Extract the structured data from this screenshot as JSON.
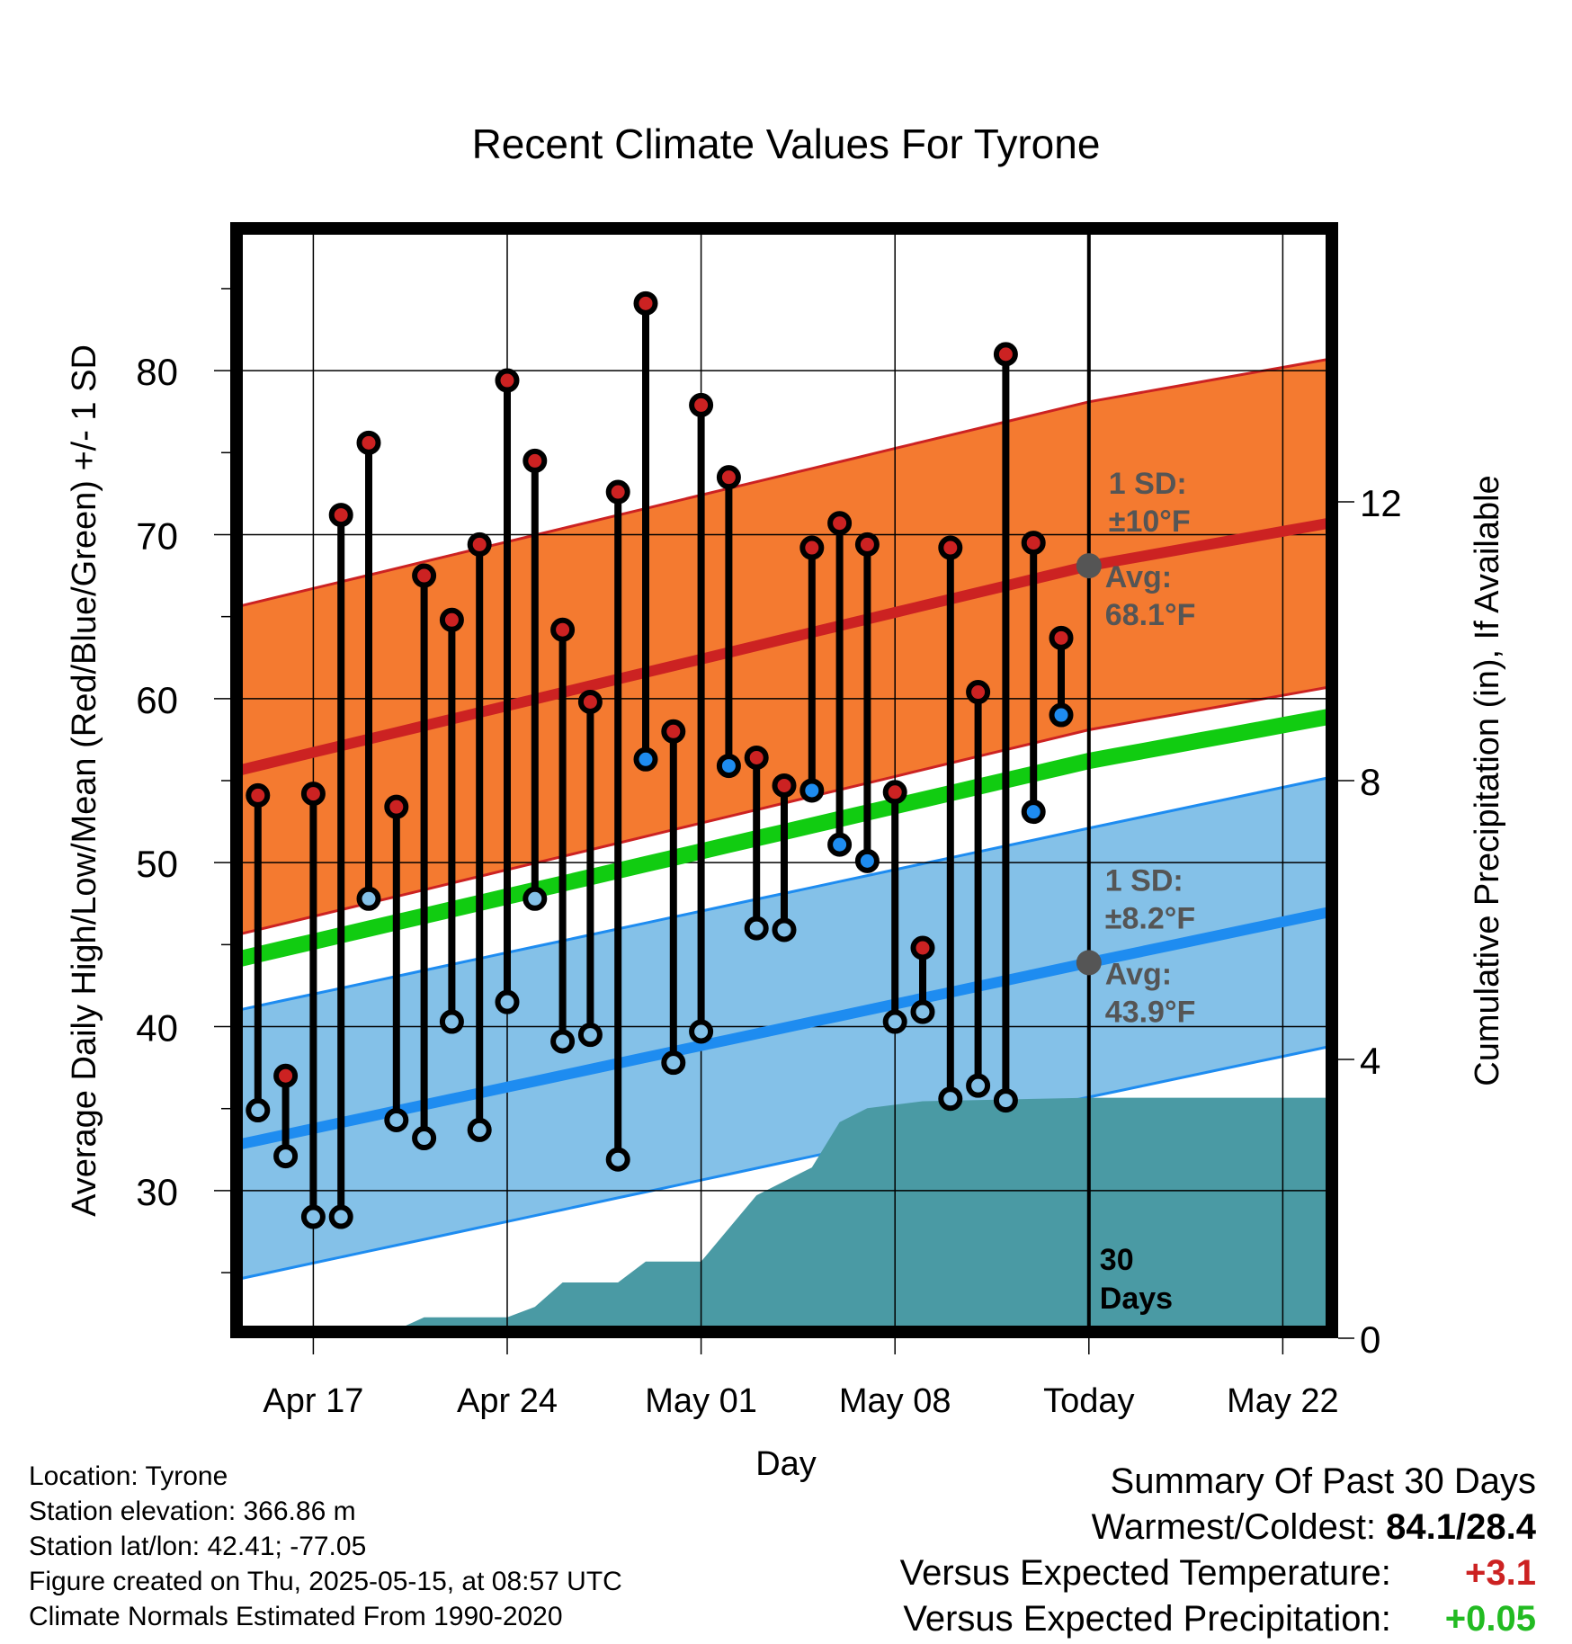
{
  "chart_data": {
    "type": "line",
    "title": "Recent Climate Values For Tyrone",
    "xlabel": "Day",
    "ylabel_left": "Average Daily High/Low/Mean (Red/Blue/Green) +/- 1 SD",
    "ylabel_right": "Cumulative Precipitation (in), If Available",
    "x_range": [
      "2025-04-14",
      "2025-05-24"
    ],
    "ylim_left": [
      21,
      89
    ],
    "yticks_left": [
      30,
      40,
      50,
      60,
      70,
      80
    ],
    "ylim_right": [
      0,
      16
    ],
    "yticks_right": [
      0,
      4,
      8,
      12
    ],
    "xticks": [
      {
        "date": "2025-04-17",
        "label": "Apr 17"
      },
      {
        "date": "2025-04-24",
        "label": "Apr 24"
      },
      {
        "date": "2025-05-01",
        "label": "May 01"
      },
      {
        "date": "2025-05-08",
        "label": "May 08"
      },
      {
        "date": "2025-05-15",
        "label": "Today"
      },
      {
        "date": "2025-05-22",
        "label": "May 22"
      }
    ],
    "grid": true,
    "daily": [
      {
        "date": "2025-04-15",
        "high": 54.1,
        "low": 34.9,
        "low_above_normal": false
      },
      {
        "date": "2025-04-16",
        "high": 37.0,
        "low": 32.1,
        "low_above_normal": false
      },
      {
        "date": "2025-04-17",
        "high": 54.2,
        "low": 28.4,
        "low_above_normal": false
      },
      {
        "date": "2025-04-18",
        "high": 71.2,
        "low": 28.4,
        "low_above_normal": false
      },
      {
        "date": "2025-04-19",
        "high": 75.6,
        "low": 47.8,
        "low_above_normal": false
      },
      {
        "date": "2025-04-20",
        "high": 53.4,
        "low": 34.3,
        "low_above_normal": false
      },
      {
        "date": "2025-04-21",
        "high": 67.5,
        "low": 33.2,
        "low_above_normal": false
      },
      {
        "date": "2025-04-22",
        "high": 64.8,
        "low": 40.3,
        "low_above_normal": false
      },
      {
        "date": "2025-04-23",
        "high": 69.4,
        "low": 33.7,
        "low_above_normal": false
      },
      {
        "date": "2025-04-24",
        "high": 79.4,
        "low": 41.5,
        "low_above_normal": false
      },
      {
        "date": "2025-04-25",
        "high": 74.5,
        "low": 47.8,
        "low_above_normal": false
      },
      {
        "date": "2025-04-26",
        "high": 64.2,
        "low": 39.1,
        "low_above_normal": false
      },
      {
        "date": "2025-04-27",
        "high": 59.8,
        "low": 39.5,
        "low_above_normal": false
      },
      {
        "date": "2025-04-28",
        "high": 72.6,
        "low": 31.9,
        "low_above_normal": false
      },
      {
        "date": "2025-04-29",
        "high": 84.1,
        "low": 56.3,
        "low_above_normal": true
      },
      {
        "date": "2025-04-30",
        "high": 58.0,
        "low": 37.8,
        "low_above_normal": false
      },
      {
        "date": "2025-05-01",
        "high": 77.9,
        "low": 39.7,
        "low_above_normal": false
      },
      {
        "date": "2025-05-02",
        "high": 73.5,
        "low": 55.9,
        "low_above_normal": true
      },
      {
        "date": "2025-05-03",
        "high": 56.4,
        "low": 46.0,
        "low_above_normal": false
      },
      {
        "date": "2025-05-04",
        "high": 54.7,
        "low": 45.9,
        "low_above_normal": false
      },
      {
        "date": "2025-05-05",
        "high": 69.2,
        "low": 54.4,
        "low_above_normal": true
      },
      {
        "date": "2025-05-06",
        "high": 70.7,
        "low": 51.1,
        "low_above_normal": true
      },
      {
        "date": "2025-05-07",
        "high": 69.4,
        "low": 50.1,
        "low_above_normal": true
      },
      {
        "date": "2025-05-08",
        "high": 54.3,
        "low": 40.3,
        "low_above_normal": false
      },
      {
        "date": "2025-05-09",
        "high": 44.8,
        "low": 40.9,
        "low_above_normal": false
      },
      {
        "date": "2025-05-10",
        "high": 69.2,
        "low": 35.6,
        "low_above_normal": false
      },
      {
        "date": "2025-05-11",
        "high": 60.4,
        "low": 36.4,
        "low_above_normal": false
      },
      {
        "date": "2025-05-12",
        "high": 81.0,
        "low": 35.5,
        "low_above_normal": false
      },
      {
        "date": "2025-05-13",
        "high": 69.5,
        "low": 53.1,
        "low_above_normal": true
      },
      {
        "date": "2025-05-14",
        "high": 63.7,
        "low": 59.0,
        "low_above_normal": true
      }
    ],
    "normals": {
      "high_mean": [
        {
          "date": "2025-04-14",
          "value": 55.5
        },
        {
          "date": "2025-05-15",
          "value": 68.1
        },
        {
          "date": "2025-05-24",
          "value": 70.8
        }
      ],
      "high_sd": 10,
      "low_mean": [
        {
          "date": "2025-04-14",
          "value": 32.7
        },
        {
          "date": "2025-05-15",
          "value": 43.9
        },
        {
          "date": "2025-05-24",
          "value": 47.1
        }
      ],
      "low_sd": 8.2,
      "daily_mean": [
        {
          "date": "2025-04-14",
          "value": 44.0
        },
        {
          "date": "2025-05-15",
          "value": 56.2
        },
        {
          "date": "2025-05-24",
          "value": 59.0
        }
      ]
    },
    "precip_cumulative": [
      {
        "date": "2025-04-14",
        "value": 0.0
      },
      {
        "date": "2025-04-18",
        "value": 0.0
      },
      {
        "date": "2025-04-19",
        "value": 0.12
      },
      {
        "date": "2025-04-20",
        "value": 0.12
      },
      {
        "date": "2025-04-21",
        "value": 0.3
      },
      {
        "date": "2025-04-24",
        "value": 0.3
      },
      {
        "date": "2025-04-25",
        "value": 0.45
      },
      {
        "date": "2025-04-26",
        "value": 0.8
      },
      {
        "date": "2025-04-28",
        "value": 0.8
      },
      {
        "date": "2025-04-29",
        "value": 1.1
      },
      {
        "date": "2025-05-01",
        "value": 1.1
      },
      {
        "date": "2025-05-03",
        "value": 2.05
      },
      {
        "date": "2025-05-05",
        "value": 2.45
      },
      {
        "date": "2025-05-06",
        "value": 3.1
      },
      {
        "date": "2025-05-07",
        "value": 3.3
      },
      {
        "date": "2025-05-09",
        "value": 3.4
      },
      {
        "date": "2025-05-15",
        "value": 3.45
      },
      {
        "date": "2025-05-24",
        "value": 3.45
      }
    ],
    "annotations": {
      "high_sd_label": "1 SD:",
      "high_sd_value": "±10°F",
      "high_avg_label": "Avg:",
      "high_avg_value": "68.1°F",
      "low_sd_label": "1 SD:",
      "low_sd_value": "±8.2°F",
      "low_avg_label": "Avg:",
      "low_avg_value": "43.9°F",
      "days_number": "30",
      "days_word": "Days"
    },
    "colors": {
      "high_band": "#f47a30",
      "high_line": "#cc2222",
      "low_band": "#84c1e8",
      "low_line": "#1e8cf0",
      "mean_line": "#11cc11",
      "precip": "#4a9aa4",
      "high_dot": "#cc2222",
      "low_dot": "#1e8cf0",
      "annotation": "#555555"
    }
  },
  "meta": {
    "location": "Location: Tyrone",
    "elevation": "Station elevation: 366.86 m",
    "latlon": "Station lat/lon: 42.41; -77.05",
    "created": "Figure created on Thu, 2025-05-15, at 08:57 UTC",
    "normals": "Climate Normals Estimated From 1990-2020"
  },
  "summary": {
    "title": "Summary Of Past 30 Days",
    "warm_cold_label": "Warmest/Coldest:",
    "warm_cold_value": "84.1/28.4",
    "temp_label": "Versus Expected Temperature:",
    "temp_value": "+3.1",
    "precip_label": "Versus Expected Precipitation:",
    "precip_value": "+0.05"
  }
}
